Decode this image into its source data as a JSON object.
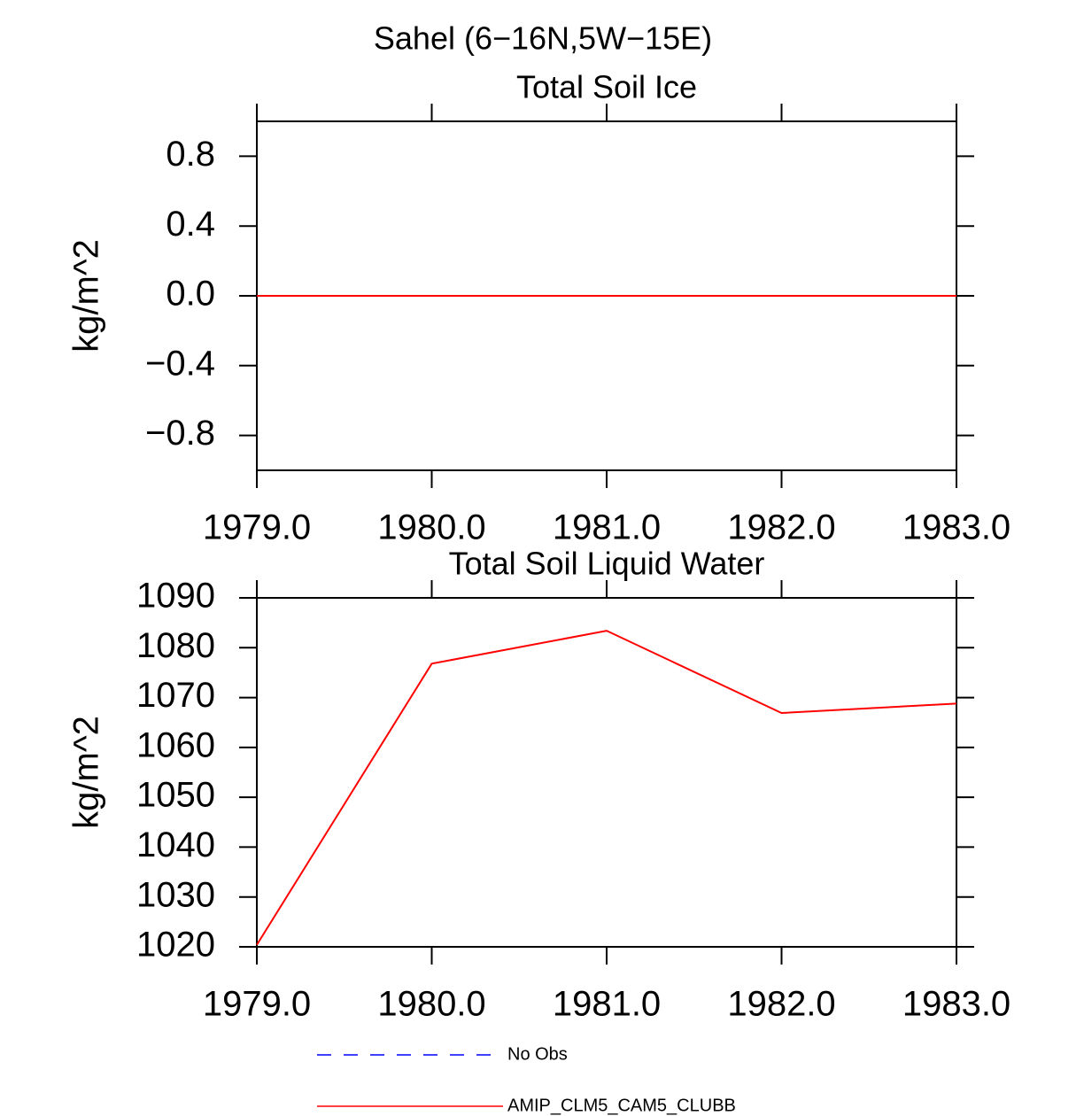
{
  "title": "Sahel (6−16N,5W−15E)",
  "chart_data": [
    {
      "type": "line",
      "title": "Total Soil Ice",
      "ylabel": "kg/m^2",
      "x": [
        1979,
        1980,
        1981,
        1982,
        1983
      ],
      "values": [
        0,
        0,
        0,
        0,
        0
      ],
      "color": "#ff0000",
      "xlim": [
        1979,
        1983
      ],
      "xticks": [
        {
          "value": 1979,
          "label": "1979.0"
        },
        {
          "value": 1980,
          "label": "1980.0"
        },
        {
          "value": 1981,
          "label": "1981.0"
        },
        {
          "value": 1982,
          "label": "1982.0"
        },
        {
          "value": 1983,
          "label": "1983.0"
        }
      ],
      "ylim": [
        -1,
        1
      ],
      "yticks": [
        {
          "value": -0.8,
          "label": "−0.8"
        },
        {
          "value": -0.4,
          "label": "−0.4"
        },
        {
          "value": 0,
          "label": "0.0"
        },
        0.4,
        0.8
      ]
    },
    {
      "type": "line",
      "title": "Total Soil Liquid Water",
      "ylabel": "kg/m^2",
      "x": [
        1979,
        1980,
        1981,
        1982,
        1983
      ],
      "series": [
        {
          "name": "No Obs",
          "color": "#0000ff",
          "dashed": true,
          "values": [
            null,
            null,
            null,
            null,
            null
          ]
        },
        {
          "name": "AMIP_CLM5_CAM5_CLUBB",
          "color": "#ff0000",
          "values": [
            1020.4,
            1076.8,
            1083.4,
            1066.9,
            1068.8
          ]
        }
      ],
      "xlim": [
        1979,
        1983
      ],
      "xticks": [
        {
          "value": 1979,
          "label": "1979.0"
        },
        {
          "value": 1980,
          "label": "1980.0"
        },
        {
          "value": 1981,
          "label": "1981.0"
        },
        {
          "value": 1982,
          "label": "1982.0"
        },
        {
          "value": 1983,
          "label": "1983.0"
        }
      ],
      "ylim": [
        1020,
        1090
      ],
      "yticks": [
        1020,
        1030,
        1040,
        1050,
        1060,
        1070,
        1080,
        1090
      ]
    }
  ]
}
